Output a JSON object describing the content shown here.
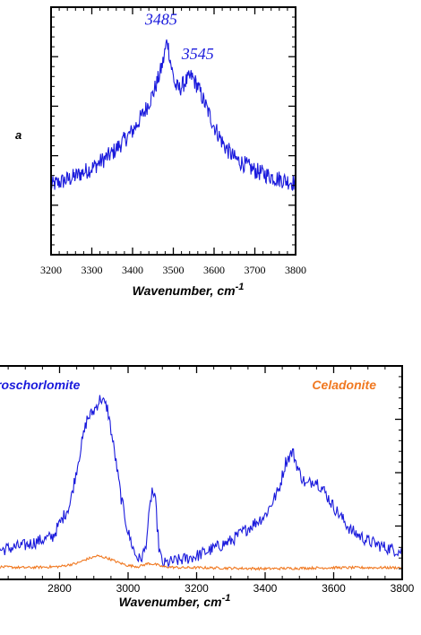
{
  "colors": {
    "blue": "#1a1adc",
    "orange": "#f07820",
    "axis": "#000000"
  },
  "chart_data": [
    {
      "type": "line",
      "panel_label": "a",
      "xlabel": "Wavenumber, cm",
      "xlabel_sup": "-1",
      "ylabel": "",
      "xlim": [
        3200,
        3800
      ],
      "ylim": [
        0,
        1
      ],
      "x_ticks": [
        3200,
        3300,
        3400,
        3500,
        3600,
        3700,
        3800
      ],
      "x_tick_labels": [
        "3200",
        "3300",
        "3400",
        "3500",
        "3600",
        "3700",
        "3800"
      ],
      "annotations": [
        {
          "text": "3485",
          "x": 3470,
          "y": 0.93
        },
        {
          "text": "3545",
          "x": 3560,
          "y": 0.79
        }
      ],
      "series": [
        {
          "color": "#1a1adc",
          "x": [
            3200,
            3250,
            3300,
            3350,
            3400,
            3430,
            3450,
            3465,
            3475,
            3485,
            3495,
            3505,
            3515,
            3530,
            3545,
            3560,
            3580,
            3600,
            3625,
            3650,
            3700,
            3750,
            3800
          ],
          "y": [
            0.28,
            0.31,
            0.35,
            0.41,
            0.5,
            0.58,
            0.65,
            0.72,
            0.78,
            0.87,
            0.76,
            0.68,
            0.67,
            0.7,
            0.72,
            0.68,
            0.6,
            0.52,
            0.44,
            0.39,
            0.34,
            0.31,
            0.29
          ]
        }
      ]
    },
    {
      "type": "line",
      "xlabel": "Wavenumber, cm",
      "xlabel_sup": "-1",
      "ylabel": "",
      "xlim": [
        2600,
        3800
      ],
      "ylim": [
        0,
        1
      ],
      "x_ticks": [
        2800,
        3000,
        3200,
        3400,
        3600,
        3800
      ],
      "x_tick_labels": [
        "2800",
        "3000",
        "3200",
        "3400",
        "3600",
        "3800"
      ],
      "legend_labels": [
        {
          "text": "roschorlomite",
          "color": "#1a1adc"
        },
        {
          "text": "Celadonite",
          "color": "#f07820"
        }
      ],
      "series": [
        {
          "color": "#1a1adc",
          "x": [
            2600,
            2700,
            2780,
            2830,
            2860,
            2880,
            2900,
            2920,
            2940,
            2960,
            2980,
            3000,
            3020,
            3035,
            3050,
            3060,
            3070,
            3080,
            3090,
            3100,
            3120,
            3150,
            3200,
            3300,
            3400,
            3440,
            3460,
            3480,
            3500,
            3520,
            3545,
            3570,
            3600,
            3650,
            3700,
            3750,
            3800
          ],
          "y": [
            0.13,
            0.16,
            0.2,
            0.35,
            0.6,
            0.75,
            0.79,
            0.85,
            0.8,
            0.6,
            0.38,
            0.22,
            0.12,
            0.09,
            0.14,
            0.28,
            0.42,
            0.36,
            0.15,
            0.07,
            0.08,
            0.09,
            0.11,
            0.18,
            0.3,
            0.42,
            0.55,
            0.6,
            0.5,
            0.44,
            0.47,
            0.42,
            0.34,
            0.23,
            0.18,
            0.15,
            0.13
          ]
        },
        {
          "color": "#f07820",
          "x": [
            2600,
            2700,
            2800,
            2850,
            2880,
            2910,
            2940,
            2970,
            3000,
            3030,
            3060,
            3080,
            3100,
            3150,
            3200,
            3400,
            3600,
            3800
          ],
          "y": [
            0.06,
            0.055,
            0.06,
            0.075,
            0.095,
            0.11,
            0.1,
            0.08,
            0.065,
            0.06,
            0.075,
            0.07,
            0.06,
            0.055,
            0.055,
            0.05,
            0.055,
            0.055
          ]
        }
      ]
    }
  ]
}
